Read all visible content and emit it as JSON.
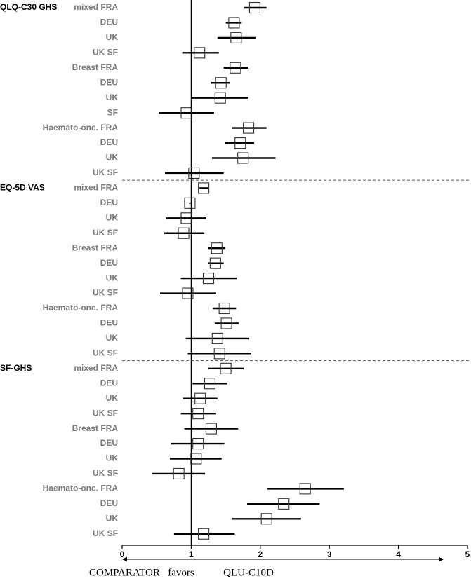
{
  "chart_data": {
    "type": "forest",
    "xlim": [
      0,
      5
    ],
    "xticks": [
      0,
      1,
      2,
      3,
      4,
      5
    ],
    "reference_line": 1,
    "caption": {
      "left": "COMPARATOR",
      "middle": "favors",
      "right": "QLU-C10D"
    },
    "groups": [
      {
        "name": "QLQ-C30 GHS",
        "rows": [
          {
            "label": "mixed FRA",
            "est": 1.92,
            "lo": 1.77,
            "hi": 2.09
          },
          {
            "label": "DEU",
            "est": 1.62,
            "lo": 1.5,
            "hi": 1.73
          },
          {
            "label": "UK",
            "est": 1.65,
            "lo": 1.38,
            "hi": 1.93
          },
          {
            "label": "UK SF",
            "est": 1.12,
            "lo": 0.87,
            "hi": 1.4
          },
          {
            "label": "Breast FRA",
            "est": 1.64,
            "lo": 1.47,
            "hi": 1.83
          },
          {
            "label": "DEU",
            "est": 1.43,
            "lo": 1.29,
            "hi": 1.56
          },
          {
            "label": "UK",
            "est": 1.42,
            "lo": 1.0,
            "hi": 1.83
          },
          {
            "label": "SF",
            "est": 0.93,
            "lo": 0.53,
            "hi": 1.33
          },
          {
            "label": "Haemato-onc. FRA",
            "est": 1.83,
            "lo": 1.59,
            "hi": 2.09
          },
          {
            "label": "DEU",
            "est": 1.71,
            "lo": 1.49,
            "hi": 1.91
          },
          {
            "label": "UK",
            "est": 1.75,
            "lo": 1.3,
            "hi": 2.22
          },
          {
            "label": "UK SF",
            "est": 1.04,
            "lo": 0.62,
            "hi": 1.47
          }
        ]
      },
      {
        "name": "EQ-5D VAS",
        "rows": [
          {
            "label": "mixed FRA",
            "est": 1.18,
            "lo": 1.12,
            "hi": 1.24
          },
          {
            "label": "DEU",
            "est": 0.98,
            "lo": 0.97,
            "hi": 0.99
          },
          {
            "label": "UK",
            "est": 0.93,
            "lo": 0.64,
            "hi": 1.22
          },
          {
            "label": "UK SF",
            "est": 0.89,
            "lo": 0.61,
            "hi": 1.19
          },
          {
            "label": "Breast FRA",
            "est": 1.37,
            "lo": 1.25,
            "hi": 1.49
          },
          {
            "label": "DEU",
            "est": 1.35,
            "lo": 1.24,
            "hi": 1.47
          },
          {
            "label": "UK",
            "est": 1.25,
            "lo": 0.85,
            "hi": 1.66
          },
          {
            "label": "UK SF",
            "est": 0.95,
            "lo": 0.55,
            "hi": 1.36
          },
          {
            "label": "Haemato-onc. FRA",
            "est": 1.48,
            "lo": 1.31,
            "hi": 1.65
          },
          {
            "label": "DEU",
            "est": 1.51,
            "lo": 1.34,
            "hi": 1.69
          },
          {
            "label": "UK",
            "est": 1.38,
            "lo": 0.92,
            "hi": 1.84
          },
          {
            "label": "UK SF",
            "est": 1.41,
            "lo": 0.95,
            "hi": 1.87
          }
        ]
      },
      {
        "name": "SF-GHS",
        "rows": [
          {
            "label": "mixed FRA",
            "est": 1.5,
            "lo": 1.25,
            "hi": 1.76
          },
          {
            "label": "DEU",
            "est": 1.27,
            "lo": 1.02,
            "hi": 1.52
          },
          {
            "label": "UK",
            "est": 1.13,
            "lo": 0.88,
            "hi": 1.38
          },
          {
            "label": "UK SF",
            "est": 1.1,
            "lo": 0.85,
            "hi": 1.36
          },
          {
            "label": "Breast FRA",
            "est": 1.29,
            "lo": 0.9,
            "hi": 1.68
          },
          {
            "label": "DEU",
            "est": 1.1,
            "lo": 0.71,
            "hi": 1.48
          },
          {
            "label": "UK",
            "est": 1.07,
            "lo": 0.69,
            "hi": 1.44
          },
          {
            "label": "UK SF",
            "est": 0.82,
            "lo": 0.43,
            "hi": 1.2
          },
          {
            "label": "Haemato-onc. FRA",
            "est": 2.65,
            "lo": 2.1,
            "hi": 3.21
          },
          {
            "label": "DEU",
            "est": 2.34,
            "lo": 1.81,
            "hi": 2.86
          },
          {
            "label": "UK",
            "est": 2.09,
            "lo": 1.59,
            "hi": 2.59
          },
          {
            "label": "UK SF",
            "est": 1.18,
            "lo": 0.75,
            "hi": 1.63
          }
        ]
      }
    ]
  }
}
